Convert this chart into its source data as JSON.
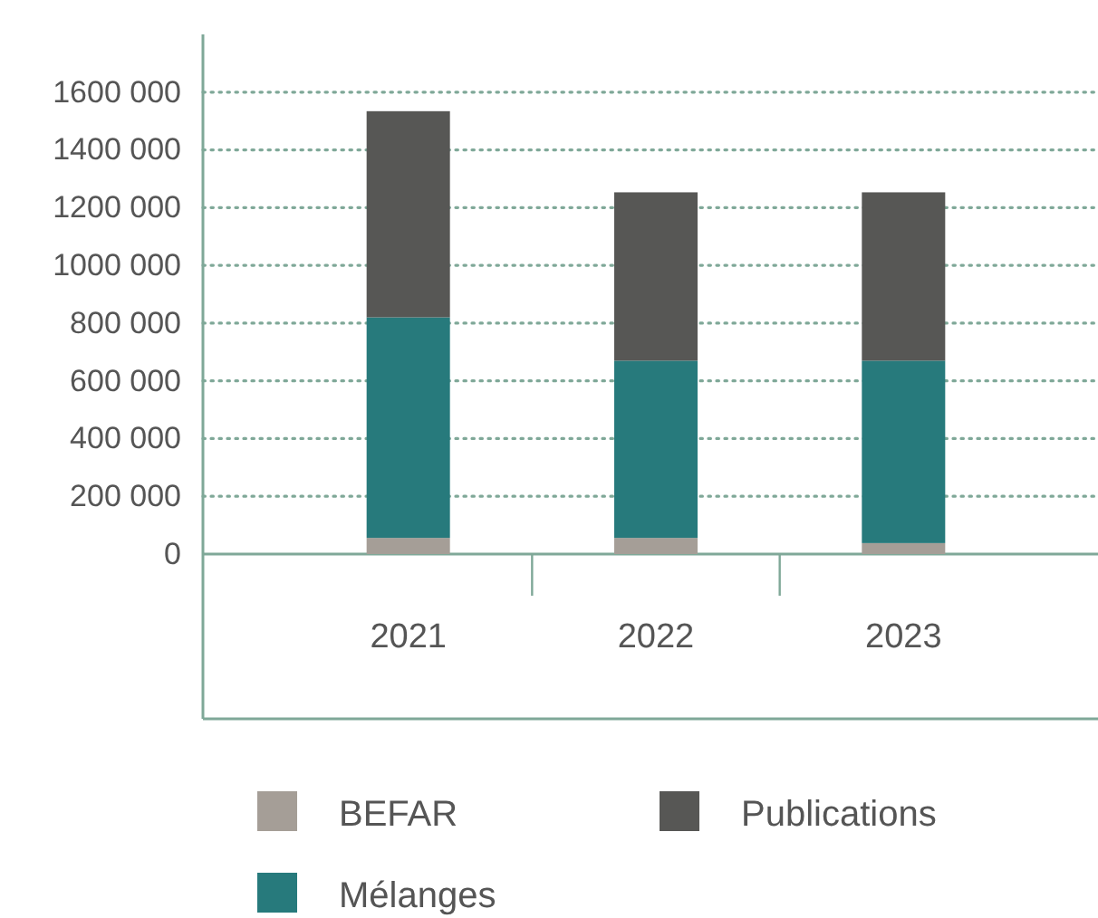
{
  "chart_data": {
    "type": "bar",
    "stacked": true,
    "categories": [
      "2021",
      "2022",
      "2023"
    ],
    "series": [
      {
        "name": "BEFAR",
        "color": "#a59e97",
        "values": [
          56000,
          56000,
          38000
        ]
      },
      {
        "name": "Mélanges",
        "color": "#277a7c",
        "values": [
          764000,
          614000,
          632000
        ]
      },
      {
        "name": "Publications",
        "color": "#575755",
        "values": [
          714000,
          583000,
          583000
        ]
      }
    ],
    "ylim": [
      0,
      1800000
    ],
    "yticks": [
      {
        "value": 0,
        "label": "0"
      },
      {
        "value": 200000,
        "label": "200 000"
      },
      {
        "value": 400000,
        "label": "400 000"
      },
      {
        "value": 600000,
        "label": "600 000"
      },
      {
        "value": 800000,
        "label": "800 000"
      },
      {
        "value": 1000000,
        "label": "1000 000"
      },
      {
        "value": 1200000,
        "label": "1200 000"
      },
      {
        "value": 1400000,
        "label": "1400 000"
      },
      {
        "value": 1600000,
        "label": "1600 000"
      }
    ],
    "grid": "y",
    "legend": "bottom"
  }
}
